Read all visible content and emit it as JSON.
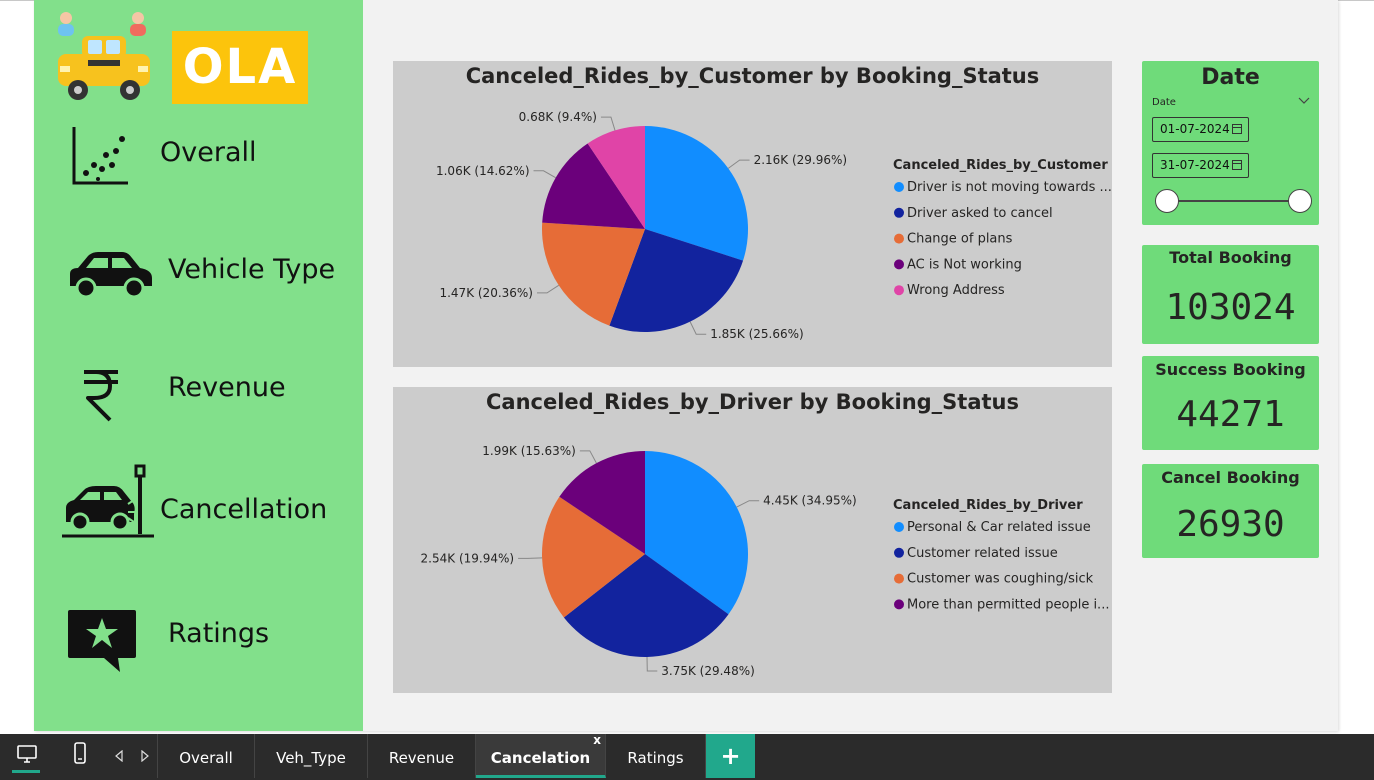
{
  "sidebar": {
    "brand": "OLA",
    "items": [
      {
        "label": "Overall",
        "icon": "scatter-chart-icon"
      },
      {
        "label": "Vehicle Type",
        "icon": "car-icon"
      },
      {
        "label": "Revenue",
        "icon": "rupee-icon"
      },
      {
        "label": "Cancellation",
        "icon": "car-crash-icon"
      },
      {
        "label": "Ratings",
        "icon": "star-chat-icon"
      }
    ]
  },
  "chart_data": [
    {
      "type": "pie",
      "title": "Canceled_Rides_by_Customer by Booking_Status",
      "legend_title": "Canceled_Rides_by_Customer",
      "legend_position": "right",
      "slices": [
        {
          "name": "Driver is not moving towards ...",
          "value": 2.16,
          "label": "2.16K (29.96%)",
          "percent": 29.96,
          "color": "#118dff"
        },
        {
          "name": "Driver asked to cancel",
          "value": 1.85,
          "label": "1.85K (25.66%)",
          "percent": 25.66,
          "color": "#12239e"
        },
        {
          "name": "Change of plans",
          "value": 1.47,
          "label": "1.47K (20.36%)",
          "percent": 20.36,
          "color": "#e66c37"
        },
        {
          "name": "AC is Not working",
          "value": 1.06,
          "label": "1.06K (14.62%)",
          "percent": 14.62,
          "color": "#6b007b"
        },
        {
          "name": "Wrong Address",
          "value": 0.68,
          "label": "0.68K (9.4%)",
          "percent": 9.4,
          "color": "#e044a7"
        }
      ]
    },
    {
      "type": "pie",
      "title": "Canceled_Rides_by_Driver by Booking_Status",
      "legend_title": "Canceled_Rides_by_Driver",
      "legend_position": "right",
      "slices": [
        {
          "name": "Personal & Car related issue",
          "value": 4.45,
          "label": "4.45K (34.95%)",
          "percent": 34.95,
          "color": "#118dff"
        },
        {
          "name": "Customer related issue",
          "value": 3.75,
          "label": "3.75K (29.48%)",
          "percent": 29.48,
          "color": "#12239e"
        },
        {
          "name": "Customer was coughing/sick",
          "value": 2.54,
          "label": "2.54K (19.94%)",
          "percent": 19.94,
          "color": "#e66c37"
        },
        {
          "name": "More than permitted people i...",
          "value": 1.99,
          "label": "1.99K (15.63%)",
          "percent": 15.63,
          "color": "#6b007b"
        }
      ]
    }
  ],
  "date_slicer": {
    "title": "Date",
    "field_label": "Date",
    "start": "01-07-2024",
    "end": "31-07-2024"
  },
  "cards": {
    "total": {
      "title": "Total Booking",
      "value": "103024"
    },
    "success": {
      "title": "Success Booking",
      "value": "44271"
    },
    "cancel": {
      "title": "Cancel Booking",
      "value": "26930"
    }
  },
  "tabs": {
    "items": [
      "Overall",
      "Veh_Type",
      "Revenue",
      "Cancelation",
      "Ratings"
    ],
    "active": "Cancelation",
    "close_glyph": "x",
    "add_glyph": "+"
  },
  "colors": {
    "sidebar": "#82e08b",
    "card": "#6fdb7a",
    "panel": "#cccccc",
    "accent": "#21a88c"
  }
}
